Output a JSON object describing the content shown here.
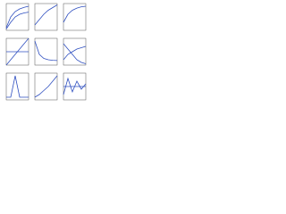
{
  "chart_data": [
    {
      "type": "line",
      "x": [
        0,
        1,
        2,
        3,
        4,
        5
      ],
      "xlim": [
        0,
        5
      ],
      "ylim": [
        0,
        10
      ],
      "series": [
        {
          "color": "#2f4fc0",
          "values": [
            1,
            5,
            7,
            8,
            8.6,
            9
          ]
        },
        {
          "color": "#2f4fc0",
          "values": [
            0.5,
            3,
            5,
            6,
            6.5,
            6.8
          ]
        }
      ]
    },
    {
      "type": "line",
      "x": [
        0,
        1,
        2,
        3,
        4,
        5
      ],
      "xlim": [
        0,
        5
      ],
      "ylim": [
        0,
        10
      ],
      "series": [
        {
          "color": "#2f4fc0",
          "values": [
            2,
            4,
            6,
            7.5,
            8.5,
            9.5
          ]
        }
      ]
    },
    {
      "type": "line",
      "x": [
        0,
        1,
        2,
        3,
        4,
        5
      ],
      "xlim": [
        0,
        5
      ],
      "ylim": [
        0,
        10
      ],
      "series": [
        {
          "color": "#2f4fc0",
          "values": [
            3,
            6,
            7.5,
            8.3,
            8.8,
            9
          ]
        }
      ]
    },
    {
      "type": "line",
      "x": [
        0,
        1,
        2,
        3,
        4,
        5
      ],
      "xlim": [
        0,
        5
      ],
      "ylim": [
        0,
        10
      ],
      "series": [
        {
          "color": "#2f4fc0",
          "values": [
            0,
            2,
            4,
            6,
            8,
            10
          ]
        },
        {
          "color": "#2f4fc0",
          "values": [
            5,
            5,
            5,
            5,
            5,
            5
          ]
        }
      ]
    },
    {
      "type": "line",
      "x": [
        0,
        1,
        2,
        3,
        4,
        5
      ],
      "xlim": [
        0,
        5
      ],
      "ylim": [
        0,
        10
      ],
      "series": [
        {
          "color": "#2f4fc0",
          "values": [
            9,
            4,
            2.5,
            2,
            1.8,
            1.7
          ]
        }
      ]
    },
    {
      "type": "line",
      "x": [
        0,
        1,
        2,
        3,
        4,
        5
      ],
      "xlim": [
        0,
        5
      ],
      "ylim": [
        0,
        10
      ],
      "series": [
        {
          "color": "#2f4fc0",
          "values": [
            2,
            4,
            5,
            6,
            6.5,
            7
          ]
        },
        {
          "color": "#2f4fc0",
          "values": [
            8,
            6,
            4,
            2,
            1,
            0.5
          ]
        }
      ]
    },
    {
      "type": "line",
      "x": [
        0,
        1,
        2,
        3,
        4,
        5
      ],
      "xlim": [
        0,
        5
      ],
      "ylim": [
        0,
        10
      ],
      "series": [
        {
          "color": "#2f4fc0",
          "values": [
            1,
            1,
            9,
            1,
            1,
            1
          ]
        }
      ]
    },
    {
      "type": "line",
      "x": [
        0,
        1,
        2,
        3,
        4,
        5
      ],
      "xlim": [
        0,
        5
      ],
      "ylim": [
        0,
        10
      ],
      "series": [
        {
          "color": "#2f4fc0",
          "values": [
            1,
            2,
            3.5,
            5,
            7,
            9
          ]
        }
      ]
    },
    {
      "type": "line",
      "x": [
        0,
        1,
        2,
        3,
        4,
        5
      ],
      "xlim": [
        0,
        5
      ],
      "ylim": [
        0,
        10
      ],
      "series": [
        {
          "color": "#2f4fc0",
          "values": [
            2,
            8,
            3,
            7,
            4,
            6
          ]
        },
        {
          "color": "#2f4fc0",
          "values": [
            5,
            5,
            5,
            5,
            5,
            5
          ]
        }
      ]
    }
  ]
}
